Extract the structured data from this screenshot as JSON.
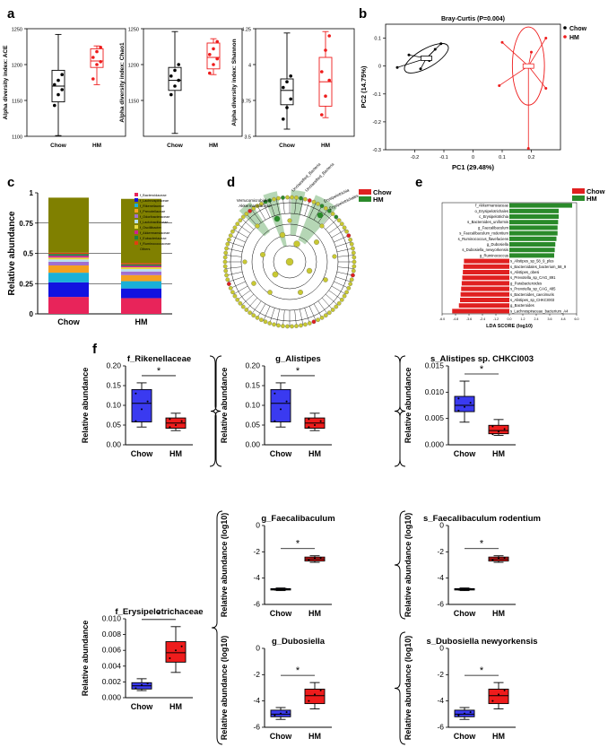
{
  "colors": {
    "chow": "#3a3af0",
    "hm": "#ee1c1c",
    "chow_dark": "#000000",
    "lefse_chow": "#e02020",
    "lefse_hm": "#2a8a2a",
    "cladogram_node": "#c8c832"
  },
  "panel_labels": {
    "a": "a",
    "b": "b",
    "c": "c",
    "d": "d",
    "e": "e",
    "f": "f"
  },
  "groups": [
    "Chow",
    "HM"
  ],
  "chart_data": [
    {
      "id": "a1",
      "type": "box",
      "ylabel": "Alpha diversity index: ACE",
      "ylim": [
        1100,
        1250
      ],
      "ticks": [
        1100,
        1150,
        1200,
        1250
      ],
      "categories": [
        "Chow",
        "HM"
      ],
      "boxes": [
        {
          "group": "Chow",
          "min": 1101,
          "q1": 1148,
          "median": 1170,
          "q3": 1192,
          "max": 1242,
          "points": [
            1143,
            1158,
            1165,
            1172,
            1178,
            1186
          ]
        },
        {
          "group": "HM",
          "min": 1172,
          "q1": 1196,
          "median": 1205,
          "q3": 1222,
          "max": 1226,
          "points": [
            1180,
            1200,
            1204,
            1210,
            1218,
            1224
          ]
        }
      ]
    },
    {
      "id": "a2",
      "type": "box",
      "ylabel": "Alpha diversity index: Chao1",
      "ylim": [
        1100,
        1250
      ],
      "ticks": [
        1150,
        1200,
        1250
      ],
      "categories": [
        "Chow",
        "HM"
      ],
      "boxes": [
        {
          "group": "Chow",
          "min": 1104,
          "q1": 1164,
          "median": 1178,
          "q3": 1196,
          "max": 1246,
          "points": [
            1158,
            1170,
            1178,
            1184,
            1192,
            1200
          ]
        },
        {
          "group": "HM",
          "min": 1186,
          "q1": 1194,
          "median": 1210,
          "q3": 1230,
          "max": 1236,
          "points": [
            1188,
            1200,
            1208,
            1214,
            1222,
            1232
          ]
        }
      ]
    },
    {
      "id": "a3",
      "type": "box",
      "ylabel": "Alpha diversity index: Shannon",
      "ylim": [
        3.5,
        4.25
      ],
      "ticks": [
        3.5,
        3.75,
        4.0,
        4.25
      ],
      "categories": [
        "Chow",
        "HM"
      ],
      "boxes": [
        {
          "group": "Chow",
          "min": 3.55,
          "q1": 3.72,
          "median": 3.82,
          "q3": 3.9,
          "max": 4.22,
          "points": [
            3.62,
            3.7,
            3.76,
            3.84,
            3.88,
            3.92
          ]
        },
        {
          "group": "HM",
          "min": 3.63,
          "q1": 3.71,
          "median": 3.88,
          "q3": 4.05,
          "max": 4.23,
          "points": [
            3.65,
            3.78,
            3.89,
            3.95,
            4.1,
            4.2
          ]
        }
      ]
    },
    {
      "id": "b",
      "type": "scatter",
      "title": "Bray-Curtis (P=0.004)",
      "xlabel": "PC1 (29.48%)",
      "ylabel": "PC2 (14.75%)",
      "xlim": [
        -0.3,
        0.3
      ],
      "ylim": [
        -0.3,
        0.15
      ],
      "xticks": [
        -0.2,
        -0.1,
        0.0,
        0.1,
        0.2
      ],
      "yticks": [
        0.1,
        0.0,
        -0.1,
        -0.2,
        -0.3
      ],
      "xticklabels": [
        "-0.2",
        "-0.1",
        "0",
        "0.1",
        "0.2"
      ],
      "yticklabels": [
        "0.1",
        "0",
        "-0.1",
        "-0.2",
        "-0.3"
      ],
      "legend": [
        {
          "label": "Chow"
        },
        {
          "label": "HM"
        }
      ],
      "groups": [
        {
          "name": "Chow",
          "center": [
            -0.16,
            0.028
          ],
          "points": [
            [
              -0.26,
              -0.005
            ],
            [
              -0.22,
              0.04
            ],
            [
              -0.18,
              -0.01
            ],
            [
              -0.13,
              0.06
            ],
            [
              -0.11,
              0.08
            ],
            [
              -0.15,
              0.02
            ]
          ],
          "ellipse": {
            "rx": 0.085,
            "ry": 0.033,
            "rot": -30
          }
        },
        {
          "name": "HM",
          "center": [
            0.19,
            0.0
          ],
          "points": [
            [
              0.1,
              0.085
            ],
            [
              0.25,
              0.1
            ],
            [
              0.25,
              -0.08
            ],
            [
              0.19,
              -0.295
            ],
            [
              0.09,
              -0.07
            ],
            [
              0.2,
              0.05
            ]
          ],
          "ellipse": {
            "rx": 0.055,
            "ry": 0.14,
            "rot": 0
          }
        }
      ]
    },
    {
      "id": "c",
      "type": "stacked_bar",
      "ylabel": "Relative abundance",
      "categories": [
        "Chow",
        "HM"
      ],
      "ylim": [
        0,
        1
      ],
      "yticks": [
        0,
        0.25,
        0.5,
        0.75,
        1
      ],
      "yticklabels": [
        "0",
        "0.25",
        "0.5",
        "0.75",
        "1"
      ],
      "series": [
        {
          "name": "f_Bacteroidaceae",
          "color": "#e8245a",
          "values": [
            0.14,
            0.13
          ]
        },
        {
          "name": "f_Lachnospiraceae",
          "color": "#1212e0",
          "values": [
            0.12,
            0.08
          ]
        },
        {
          "name": "f_Rikenellaceae",
          "color": "#1ab0d8",
          "values": [
            0.08,
            0.06
          ]
        },
        {
          "name": "f_Prevotellaceae",
          "color": "#f4a020",
          "values": [
            0.06,
            0.05
          ]
        },
        {
          "name": "f_Odoribacteraceae",
          "color": "#a070d0",
          "values": [
            0.03,
            0.03
          ]
        },
        {
          "name": "f_Lactobacillaceae",
          "color": "#b8e0f0",
          "values": [
            0.02,
            0.02
          ]
        },
        {
          "name": "f_Oscillibacter",
          "color": "#e6d840",
          "values": [
            0.015,
            0.015
          ]
        },
        {
          "name": "f_Akkermansiaceae",
          "color": "#d02090",
          "values": [
            0.015,
            0.012
          ]
        },
        {
          "name": "f_Eubacteriaceae",
          "color": "#208040",
          "values": [
            0.015,
            0.012
          ]
        },
        {
          "name": "f_Ruminococcaceae",
          "color": "#e04010",
          "values": [
            0.01,
            0.01
          ]
        },
        {
          "name": "Others",
          "color": "#808000",
          "values": [
            0.455,
            0.531
          ]
        }
      ]
    },
    {
      "id": "e",
      "type": "hbar",
      "xlabel": "LDA SCORE (log10)",
      "xlim": [
        -6,
        6
      ],
      "xticks": [
        -6,
        -4.8,
        -3.6,
        -2.4,
        -1.2,
        0,
        1.2,
        2.4,
        3.6,
        4.8,
        6
      ],
      "xticklabels": [
        "-6.0",
        "-4.8",
        "-3.6",
        "-2.4",
        "-1.2",
        "0.0",
        "1.2",
        "2.4",
        "3.6",
        "4.8",
        "6.0"
      ],
      "legend": [
        {
          "label": "Chow"
        },
        {
          "label": "HM"
        }
      ],
      "bars": [
        {
          "label": "f_Akkermansiaceae",
          "value": 5.6,
          "group": "HM"
        },
        {
          "label": "o_Erysipelotrichales",
          "value": 4.4,
          "group": "HM"
        },
        {
          "label": "c_Erysipelotrichia",
          "value": 4.4,
          "group": "HM"
        },
        {
          "label": "s_Bacteroides_uniformis",
          "value": 4.35,
          "group": "HM"
        },
        {
          "label": "g_Faecalibaculum",
          "value": 4.3,
          "group": "HM"
        },
        {
          "label": "s_Faecalibaculum_rodentium",
          "value": 4.3,
          "group": "HM"
        },
        {
          "label": "s_Ruminococcus_flavefaciens",
          "value": 4.2,
          "group": "HM"
        },
        {
          "label": "g_Dubosiella",
          "value": 4.1,
          "group": "HM"
        },
        {
          "label": "s_Dubosiella_newyorkensis",
          "value": 4.05,
          "group": "HM"
        },
        {
          "label": "g_Ruminococcus",
          "value": 4.0,
          "group": "HM"
        },
        {
          "label": "s_Alistipes_sp_58_9_plus",
          "value": -4.05,
          "group": "Chow"
        },
        {
          "label": "s_Bacteroidales_bacterium_58_9",
          "value": -4.1,
          "group": "Chow"
        },
        {
          "label": "s_Alistipes_obesi",
          "value": -4.15,
          "group": "Chow"
        },
        {
          "label": "s_Prevotella_sp_CAG_891",
          "value": -4.2,
          "group": "Chow"
        },
        {
          "label": "g_Parabacteroides",
          "value": -4.25,
          "group": "Chow"
        },
        {
          "label": "s_Prevotella_sp_CAG_485",
          "value": -4.3,
          "group": "Chow"
        },
        {
          "label": "s_Bacteroides_caecimuris",
          "value": -4.35,
          "group": "Chow"
        },
        {
          "label": "s_Alistipes_sp_CHKCI003",
          "value": -4.4,
          "group": "Chow"
        },
        {
          "label": "g_Bacteroides",
          "value": -4.5,
          "group": "Chow"
        },
        {
          "label": "s_Lachnospiraceae_bacterium_A4",
          "value": -5.1,
          "group": "Chow"
        }
      ]
    },
    {
      "id": "f1",
      "type": "box",
      "title": "f_Rikenellaceae",
      "ylabel": "Relative abundance",
      "ylim": [
        0,
        0.2
      ],
      "ticks": [
        0,
        0.05,
        0.1,
        0.15,
        0.2
      ],
      "ticklabels": [
        "0.00",
        "0.05",
        "0.10",
        "0.15",
        "0.20"
      ],
      "categories": [
        "Chow",
        "HM"
      ],
      "sig": "*",
      "boxes": [
        {
          "group": "Chow",
          "min": 0.045,
          "q1": 0.058,
          "median": 0.105,
          "q3": 0.14,
          "max": 0.157,
          "points": [
            0.06,
            0.09,
            0.11,
            0.13
          ]
        },
        {
          "group": "HM",
          "min": 0.036,
          "q1": 0.042,
          "median": 0.055,
          "q3": 0.068,
          "max": 0.08,
          "points": [
            0.045,
            0.05,
            0.06,
            0.065
          ]
        }
      ]
    },
    {
      "id": "f2",
      "type": "box",
      "title": "g_Alistipes",
      "ylabel": "Relative abundance",
      "ylim": [
        0,
        0.2
      ],
      "ticks": [
        0,
        0.05,
        0.1,
        0.15,
        0.2
      ],
      "ticklabels": [
        "0.00",
        "0.05",
        "0.10",
        "0.15",
        "0.20"
      ],
      "categories": [
        "Chow",
        "HM"
      ],
      "sig": "*",
      "boxes": [
        {
          "group": "Chow",
          "min": 0.045,
          "q1": 0.058,
          "median": 0.105,
          "q3": 0.14,
          "max": 0.157,
          "points": [
            0.06,
            0.09,
            0.11,
            0.13
          ]
        },
        {
          "group": "HM",
          "min": 0.036,
          "q1": 0.042,
          "median": 0.055,
          "q3": 0.068,
          "max": 0.08,
          "points": [
            0.045,
            0.05,
            0.06,
            0.065
          ]
        }
      ]
    },
    {
      "id": "f3",
      "type": "box",
      "title": "s_Alistipes sp. CHKCI003",
      "ylabel": "Relative abundance",
      "ylim": [
        0,
        0.015
      ],
      "ticks": [
        0,
        0.005,
        0.01,
        0.015
      ],
      "ticklabels": [
        "0.000",
        "0.005",
        "0.010",
        "0.015"
      ],
      "categories": [
        "Chow",
        "HM"
      ],
      "sig": "*",
      "boxes": [
        {
          "group": "Chow",
          "min": 0.0043,
          "q1": 0.0063,
          "median": 0.0075,
          "q3": 0.0092,
          "max": 0.0121,
          "points": [
            0.0065,
            0.0072,
            0.008,
            0.0088
          ]
        },
        {
          "group": "HM",
          "min": 0.0018,
          "q1": 0.0021,
          "median": 0.0027,
          "q3": 0.0037,
          "max": 0.0048,
          "points": [
            0.002,
            0.0025,
            0.003,
            0.0035
          ]
        }
      ]
    },
    {
      "id": "f4",
      "type": "box",
      "title": "g_Faecalibaculum",
      "ylabel": "Relative abundance (log10)",
      "ylim": [
        -6,
        0
      ],
      "ticks": [
        -6,
        -4,
        -2,
        0
      ],
      "ticklabels": [
        "-6",
        "-4",
        "-2",
        "0"
      ],
      "categories": [
        "Chow",
        "HM"
      ],
      "sig": "*",
      "boxes": [
        {
          "group": "Chow",
          "min": -4.95,
          "q1": -4.9,
          "median": -4.85,
          "q3": -4.8,
          "max": -4.75,
          "points": [
            -4.88,
            -4.85,
            -4.82
          ]
        },
        {
          "group": "HM",
          "min": -2.8,
          "q1": -2.7,
          "median": -2.55,
          "q3": -2.4,
          "max": -2.3,
          "points": [
            -2.65,
            -2.5,
            -2.45
          ]
        }
      ]
    },
    {
      "id": "f5",
      "type": "box",
      "title": "s_Faecalibaculum rodentium",
      "ylabel": "Relative abundance (log10)",
      "ylim": [
        -6,
        0
      ],
      "ticks": [
        -6,
        -4,
        -2,
        0
      ],
      "ticklabels": [
        "-6",
        "-4",
        "-2",
        "0"
      ],
      "categories": [
        "Chow",
        "HM"
      ],
      "sig": "*",
      "boxes": [
        {
          "group": "Chow",
          "min": -4.95,
          "q1": -4.9,
          "median": -4.85,
          "q3": -4.8,
          "max": -4.75,
          "points": [
            -4.88,
            -4.85,
            -4.82
          ]
        },
        {
          "group": "HM",
          "min": -2.8,
          "q1": -2.7,
          "median": -2.55,
          "q3": -2.4,
          "max": -2.3,
          "points": [
            -2.65,
            -2.5,
            -2.45
          ]
        }
      ]
    },
    {
      "id": "f6",
      "type": "box",
      "title": "f_Erysipelotrichaceae",
      "ylabel": "Relative abundance",
      "ylim": [
        0,
        0.01
      ],
      "ticks": [
        0,
        0.002,
        0.004,
        0.006,
        0.008,
        0.01
      ],
      "ticklabels": [
        "0.000",
        "0.002",
        "0.004",
        "0.006",
        "0.008",
        "0.010"
      ],
      "categories": [
        "Chow",
        "HM"
      ],
      "sig": "*",
      "boxes": [
        {
          "group": "Chow",
          "min": 0.0009,
          "q1": 0.0011,
          "median": 0.0015,
          "q3": 0.0019,
          "max": 0.0024,
          "points": [
            0.0012,
            0.0016,
            0.0018
          ]
        },
        {
          "group": "HM",
          "min": 0.0032,
          "q1": 0.0045,
          "median": 0.0057,
          "q3": 0.0071,
          "max": 0.009,
          "points": [
            0.005,
            0.006,
            0.0065
          ]
        }
      ]
    },
    {
      "id": "f7",
      "type": "box",
      "title": "g_Dubosiella",
      "ylabel": "Relative abundance (log10)",
      "ylim": [
        -6,
        0
      ],
      "ticks": [
        -6,
        -4,
        -2,
        0
      ],
      "ticklabels": [
        "-6",
        "-4",
        "-2",
        "0"
      ],
      "categories": [
        "Chow",
        "HM"
      ],
      "sig": "*",
      "boxes": [
        {
          "group": "Chow",
          "min": -5.4,
          "q1": -5.2,
          "median": -5.0,
          "q3": -4.7,
          "max": -4.5,
          "points": [
            -5.1,
            -4.95,
            -4.85
          ]
        },
        {
          "group": "HM",
          "min": -4.6,
          "q1": -4.2,
          "median": -3.6,
          "q3": -3.1,
          "max": -2.6,
          "points": [
            -4.0,
            -3.5,
            -3.2
          ]
        }
      ]
    },
    {
      "id": "f8",
      "type": "box",
      "title": "s_Dubosiella newyorkensis",
      "ylabel": "Relative abundance (log10)",
      "ylim": [
        -6,
        0
      ],
      "ticks": [
        -6,
        -4,
        -2,
        0
      ],
      "ticklabels": [
        "-6",
        "-4",
        "-2",
        "0"
      ],
      "categories": [
        "Chow",
        "HM"
      ],
      "sig": "*",
      "boxes": [
        {
          "group": "Chow",
          "min": -5.4,
          "q1": -5.2,
          "median": -5.0,
          "q3": -4.7,
          "max": -4.5,
          "points": [
            -5.1,
            -4.95,
            -4.85
          ]
        },
        {
          "group": "HM",
          "min": -4.6,
          "q1": -4.2,
          "median": -3.6,
          "q3": -3.1,
          "max": -2.6,
          "points": [
            -4.0,
            -3.5,
            -3.2
          ]
        }
      ]
    },
    {
      "id": "d",
      "type": "cladogram",
      "legend": [
        {
          "label": "Chow"
        },
        {
          "label": "HM"
        }
      ],
      "highlighted_clades": [
        {
          "label": "Verrucomicrobiales",
          "group": "HM"
        },
        {
          "label": "Akkermansiaceae",
          "group": "HM"
        },
        {
          "label": "Unclassified_Bacteria",
          "group": "HM"
        },
        {
          "label": "Unclassified_Bacteria",
          "group": "HM"
        },
        {
          "label": "Erysipelotrichia",
          "group": "HM"
        },
        {
          "label": "Erysipelotrichales",
          "group": "HM"
        }
      ]
    }
  ]
}
